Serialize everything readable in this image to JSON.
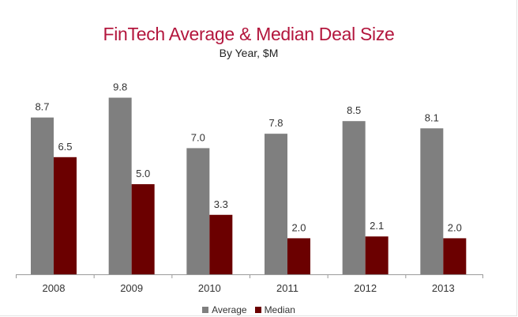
{
  "chart_data": {
    "type": "bar",
    "title": "FinTech Average & Median Deal Size",
    "subtitle": "By  Year, $M",
    "categories": [
      "2008",
      "2009",
      "2010",
      "2011",
      "2012",
      "2013"
    ],
    "series": [
      {
        "name": "Average",
        "color": "#7f7f7f",
        "values": [
          8.7,
          9.8,
          7.0,
          7.8,
          8.5,
          8.1
        ],
        "labels": [
          "8.7",
          "9.8",
          "7.0",
          "7.8",
          "8.5",
          "8.1"
        ]
      },
      {
        "name": "Median",
        "color": "#6b0000",
        "values": [
          6.5,
          5.0,
          3.3,
          2.0,
          2.1,
          2.0
        ],
        "labels": [
          "6.5",
          "5.0",
          "3.3",
          "2.0",
          "2.1",
          "2.0"
        ]
      }
    ],
    "ylim": [
      0,
      10
    ],
    "grid": false,
    "legend_position": "bottom"
  }
}
